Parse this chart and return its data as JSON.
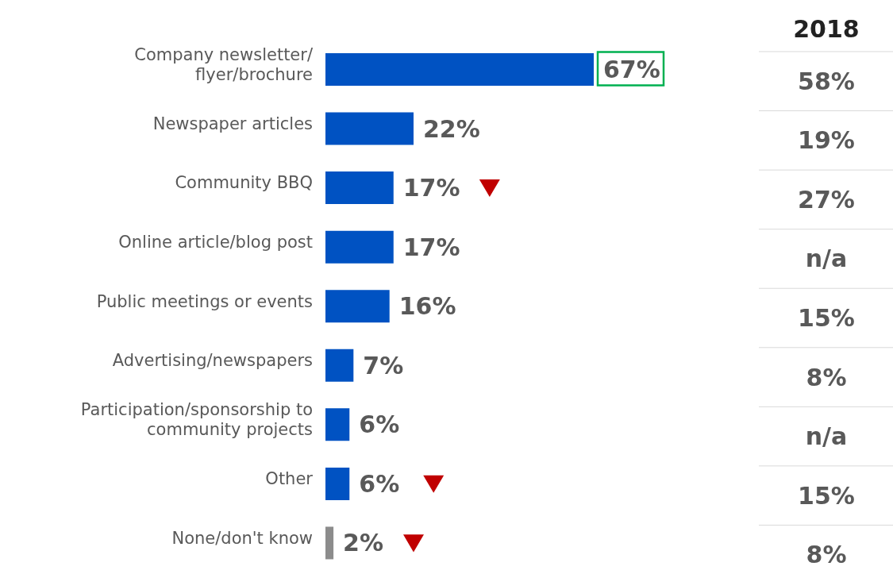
{
  "chart_data": [
    {
      "type": "bar",
      "orientation": "horizontal",
      "categories": [
        "Company newsletter/ flyer/brochure",
        "Newspaper articles",
        "Community BBQ",
        "Online article/blog post",
        "Public meetings or events",
        "Advertising/newspapers",
        "Participation/sponsorship  to community projects",
        "Other",
        "None/don't know"
      ],
      "tick_labels": "y",
      "series": [
        {
          "colors": [
            "#0052c2",
            "#0052c2",
            "#0052c2",
            "#0052c2",
            "#0052c2",
            "#0052c2",
            "#0052c2",
            "#0052c2",
            "#8c8c8c"
          ],
          "values": [
            67,
            22,
            17,
            17,
            16,
            7,
            6,
            6,
            2
          ],
          "value_labels": [
            "67%",
            "22%",
            "17%",
            "17%",
            "16%",
            "7%",
            "6%",
            "6%",
            "2%"
          ]
        },
        {
          "type": "scatter",
          "marker": "triangle",
          "color": "#c00000",
          "values": [
            null,
            null,
            41,
            null,
            null,
            null,
            null,
            27,
            22
          ]
        }
      ]
    },
    {
      "type": "other",
      "title": "2018",
      "value_labels": [
        "58%",
        "19%",
        "27%",
        "n/a",
        "15%",
        "8%",
        "n/a",
        "15%",
        "8%"
      ]
    }
  ]
}
